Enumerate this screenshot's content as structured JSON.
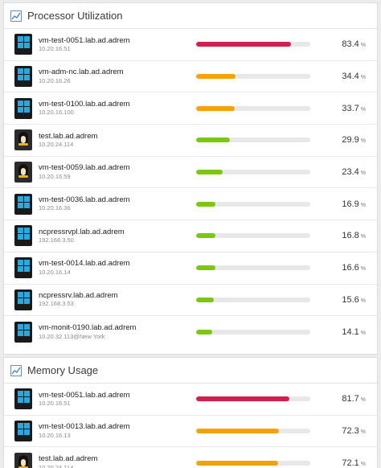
{
  "colors": {
    "critical": "#d21f4e",
    "warning": "#f5a20a",
    "normal": "#7cc70f",
    "track": "#e8e8e8"
  },
  "cpu_panel": {
    "title": "Processor Utilization",
    "icon": "line-chart-icon",
    "rows": [
      {
        "name": "vm-test-0051.lab.ad.adrem",
        "ip": "10.20.16.51",
        "value": "83.4",
        "unit": "%",
        "percent": 83.4,
        "status": "critical",
        "os": "windows"
      },
      {
        "name": "vm-adm-nc.lab.ad.adrem",
        "ip": "10.20.16.26",
        "value": "34.4",
        "unit": "%",
        "percent": 34.4,
        "status": "warning",
        "os": "windows"
      },
      {
        "name": "vm-test-0100.lab.ad.adrem",
        "ip": "10.20.16.100",
        "value": "33.7",
        "unit": "%",
        "percent": 33.7,
        "status": "warning",
        "os": "windows"
      },
      {
        "name": "test.lab.ad.adrem",
        "ip": "10.20.24.114",
        "value": "29.9",
        "unit": "%",
        "percent": 29.9,
        "status": "normal",
        "os": "linux"
      },
      {
        "name": "vm-test-0059.lab.ad.adrem",
        "ip": "10.20.16.59",
        "value": "23.4",
        "unit": "%",
        "percent": 23.4,
        "status": "normal",
        "os": "linux"
      },
      {
        "name": "vm-test-0036.lab.ad.adrem",
        "ip": "10.20.16.36",
        "value": "16.9",
        "unit": "%",
        "percent": 16.9,
        "status": "normal",
        "os": "windows"
      },
      {
        "name": "ncpressrvpl.lab.ad.adrem",
        "ip": "192.168.3.50",
        "value": "16.8",
        "unit": "%",
        "percent": 16.8,
        "status": "normal",
        "os": "windows"
      },
      {
        "name": "vm-test-0014.lab.ad.adrem",
        "ip": "10.20.16.14",
        "value": "16.6",
        "unit": "%",
        "percent": 16.6,
        "status": "normal",
        "os": "windows"
      },
      {
        "name": "ncpressrv.lab.ad.adrem",
        "ip": "192.168.3.53",
        "value": "15.6",
        "unit": "%",
        "percent": 15.6,
        "status": "normal",
        "os": "windows"
      },
      {
        "name": "vm-monit-0190.lab.ad.adrem",
        "ip": "10.20.32.113@New York",
        "value": "14.1",
        "unit": "%",
        "percent": 14.1,
        "status": "normal",
        "os": "windows"
      }
    ]
  },
  "mem_panel": {
    "title": "Memory Usage",
    "icon": "line-chart-icon",
    "rows": [
      {
        "name": "vm-test-0051.lab.ad.adrem",
        "ip": "10.20.16.51",
        "value": "81.7",
        "unit": "%",
        "percent": 81.7,
        "status": "critical",
        "os": "windows"
      },
      {
        "name": "vm-test-0013.lab.ad.adrem",
        "ip": "10.20.16.13",
        "value": "72.3",
        "unit": "%",
        "percent": 72.3,
        "status": "warning",
        "os": "windows"
      },
      {
        "name": "test.lab.ad.adrem",
        "ip": "10.20.24.114",
        "value": "72.1",
        "unit": "%",
        "percent": 72.1,
        "status": "warning",
        "os": "linux"
      }
    ]
  }
}
